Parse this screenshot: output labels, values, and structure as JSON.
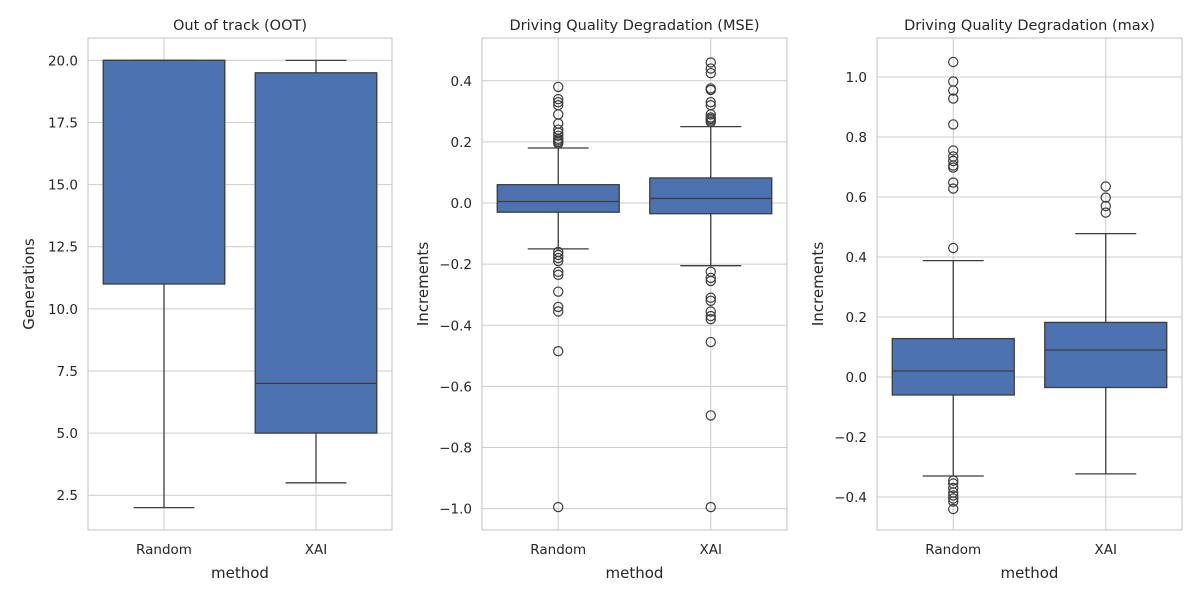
{
  "chart_data": [
    {
      "type": "box",
      "title": "Out of track (OOT)",
      "xlabel": "method",
      "ylabel": "Generations",
      "categories": [
        "Random",
        "XAI"
      ],
      "ylim": [
        1.1,
        20.9
      ],
      "yticks": [
        2.5,
        5.0,
        7.5,
        10.0,
        12.5,
        15.0,
        17.5,
        20.0
      ],
      "ytick_labels": [
        "2.5",
        "5.0",
        "7.5",
        "10.0",
        "12.5",
        "15.0",
        "17.5",
        "20.0"
      ],
      "grid": true,
      "color": "#4c72b0",
      "boxes": [
        {
          "whisker_low": 2,
          "q1": 11,
          "median": 20,
          "q3": 20,
          "whisker_high": 20,
          "fliers": []
        },
        {
          "whisker_low": 3,
          "q1": 5,
          "median": 7,
          "q3": 19.5,
          "whisker_high": 20,
          "fliers": []
        }
      ]
    },
    {
      "type": "box",
      "title": "Driving Quality Degradation (MSE)",
      "xlabel": "method",
      "ylabel": "Increments",
      "categories": [
        "Random",
        "XAI"
      ],
      "ylim": [
        -1.07,
        0.54
      ],
      "yticks": [
        -1.0,
        -0.8,
        -0.6,
        -0.4,
        -0.2,
        0.0,
        0.2,
        0.4
      ],
      "ytick_labels": [
        "−1.0",
        "−0.8",
        "−0.6",
        "−0.4",
        "−0.2",
        "0.0",
        "0.2",
        "0.4"
      ],
      "grid": true,
      "color": "#4c72b0",
      "boxes": [
        {
          "whisker_low": -0.15,
          "q1": -0.03,
          "median": 0.005,
          "q3": 0.06,
          "whisker_high": 0.18,
          "fliers": [
            0.38,
            0.34,
            0.33,
            0.32,
            0.29,
            0.26,
            0.24,
            0.23,
            0.22,
            0.21,
            0.205,
            0.2,
            0.195,
            -0.16,
            -0.17,
            -0.18,
            -0.19,
            -0.225,
            -0.235,
            -0.29,
            -0.34,
            -0.355,
            -0.485,
            -0.995
          ]
        },
        {
          "whisker_low": -0.205,
          "q1": -0.035,
          "median": 0.015,
          "q3": 0.082,
          "whisker_high": 0.25,
          "fliers": [
            0.46,
            0.44,
            0.425,
            0.375,
            0.37,
            0.33,
            0.32,
            0.29,
            0.28,
            0.275,
            0.27,
            0.265,
            -0.225,
            -0.245,
            -0.255,
            -0.31,
            -0.32,
            -0.355,
            -0.37,
            -0.38,
            -0.455,
            -0.695,
            -0.995
          ]
        }
      ]
    },
    {
      "type": "box",
      "title": "Driving Quality Degradation (max)",
      "xlabel": "method",
      "ylabel": "Increments",
      "categories": [
        "Random",
        "XAI"
      ],
      "ylim": [
        -0.51,
        1.13
      ],
      "yticks": [
        -0.4,
        -0.2,
        0.0,
        0.2,
        0.4,
        0.6,
        0.8,
        1.0
      ],
      "ytick_labels": [
        "−0.4",
        "−0.2",
        "0.0",
        "0.2",
        "0.4",
        "0.6",
        "0.8",
        "1.0"
      ],
      "grid": true,
      "color": "#4c72b0",
      "boxes": [
        {
          "whisker_low": -0.33,
          "q1": -0.06,
          "median": 0.02,
          "q3": 0.128,
          "whisker_high": 0.388,
          "fliers": [
            1.05,
            0.985,
            0.955,
            0.928,
            0.842,
            0.755,
            0.735,
            0.72,
            0.705,
            0.698,
            0.648,
            0.628,
            0.43,
            -0.345,
            -0.355,
            -0.37,
            -0.385,
            -0.395,
            -0.405,
            -0.415,
            -0.44
          ]
        },
        {
          "whisker_low": -0.323,
          "q1": -0.035,
          "median": 0.09,
          "q3": 0.182,
          "whisker_high": 0.478,
          "fliers": [
            0.635,
            0.598,
            0.57,
            0.548
          ]
        }
      ]
    }
  ]
}
